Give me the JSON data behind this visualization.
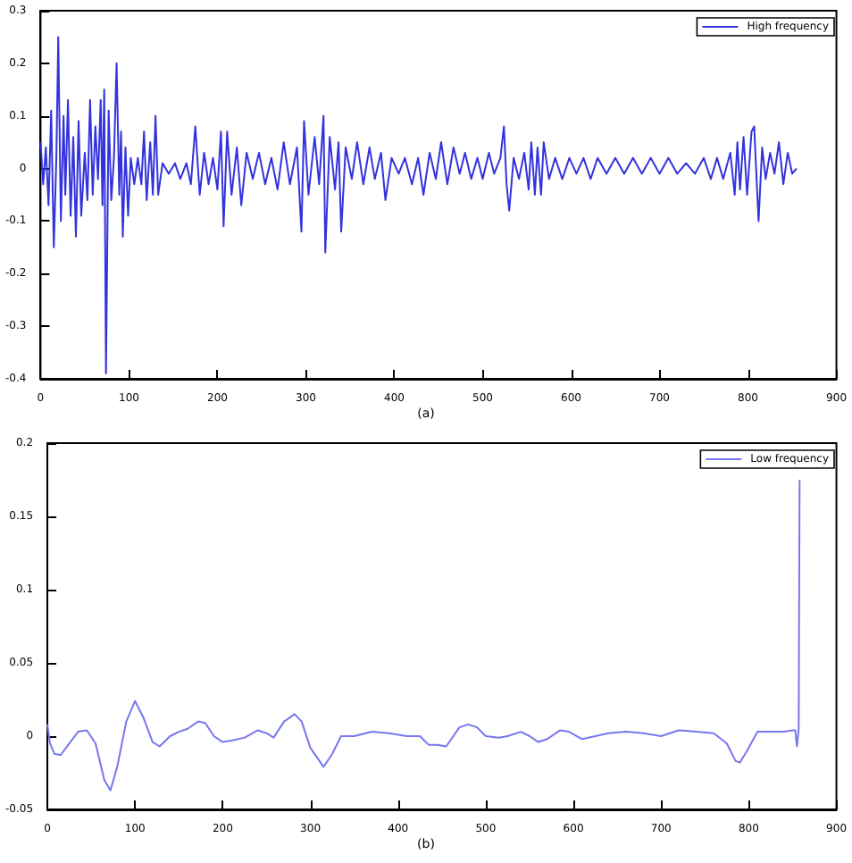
{
  "chart_data": [
    {
      "type": "line",
      "annotations": [
        "(a)"
      ],
      "legend": "top right",
      "grid": false,
      "marker": "none",
      "line_style": "solid",
      "xlim": [
        0,
        900
      ],
      "xticks": [
        0,
        100,
        200,
        300,
        400,
        500,
        600,
        700,
        800,
        900
      ],
      "ylim": [
        -0.4,
        0.3
      ],
      "yticks": [
        -0.4,
        -0.3,
        -0.2,
        -0.1,
        0,
        0.1,
        0.2,
        0.3
      ],
      "x": [
        0,
        3,
        6,
        9,
        12,
        15,
        18,
        20,
        23,
        26,
        28,
        31,
        34,
        37,
        40,
        43,
        46,
        50,
        53,
        56,
        59,
        62,
        65,
        68,
        70,
        72,
        74,
        77,
        80,
        83,
        86,
        89,
        91,
        93,
        96,
        99,
        102,
        106,
        110,
        114,
        117,
        120,
        124,
        127,
        130,
        133,
        138,
        145,
        152,
        158,
        165,
        170,
        175,
        180,
        185,
        190,
        195,
        200,
        204,
        207,
        211,
        216,
        222,
        227,
        233,
        240,
        247,
        254,
        261,
        268,
        275,
        282,
        290,
        295,
        298,
        303,
        310,
        315,
        320,
        322,
        327,
        333,
        337,
        340,
        345,
        352,
        358,
        365,
        372,
        378,
        385,
        390,
        397,
        405,
        412,
        420,
        427,
        433,
        440,
        447,
        453,
        460,
        467,
        474,
        480,
        487,
        494,
        500,
        507,
        513,
        520,
        524,
        527,
        530,
        535,
        541,
        547,
        552,
        555,
        559,
        562,
        566,
        569,
        575,
        582,
        590,
        598,
        606,
        614,
        622,
        630,
        640,
        650,
        660,
        670,
        680,
        690,
        700,
        710,
        720,
        730,
        740,
        750,
        758,
        765,
        772,
        780,
        785,
        788,
        791,
        795,
        799,
        804,
        807,
        810,
        812,
        816,
        820,
        825,
        830,
        835,
        840,
        845,
        850,
        855
      ],
      "series": [
        {
          "name": "High frequency",
          "color": "#3333dd",
          "values": [
            0.05,
            -0.03,
            0.04,
            -0.07,
            0.11,
            -0.15,
            0.03,
            0.25,
            -0.1,
            0.1,
            -0.05,
            0.13,
            -0.09,
            0.06,
            -0.13,
            0.09,
            -0.09,
            0.03,
            -0.06,
            0.13,
            -0.05,
            0.08,
            -0.02,
            0.13,
            -0.07,
            0.15,
            -0.39,
            0.11,
            -0.06,
            0.02,
            0.2,
            -0.05,
            0.07,
            -0.13,
            0.04,
            -0.09,
            0.02,
            -0.03,
            0.02,
            -0.03,
            0.07,
            -0.06,
            0.05,
            -0.05,
            0.1,
            -0.05,
            0.01,
            -0.01,
            0.01,
            -0.02,
            0.01,
            -0.03,
            0.08,
            -0.05,
            0.03,
            -0.03,
            0.02,
            -0.04,
            0.07,
            -0.11,
            0.07,
            -0.05,
            0.04,
            -0.07,
            0.03,
            -0.02,
            0.03,
            -0.03,
            0.02,
            -0.04,
            0.05,
            -0.03,
            0.04,
            -0.12,
            0.09,
            -0.05,
            0.06,
            -0.03,
            0.1,
            -0.16,
            0.06,
            -0.04,
            0.05,
            -0.12,
            0.04,
            -0.02,
            0.05,
            -0.03,
            0.04,
            -0.02,
            0.03,
            -0.06,
            0.02,
            -0.01,
            0.02,
            -0.03,
            0.02,
            -0.05,
            0.03,
            -0.02,
            0.05,
            -0.03,
            0.04,
            -0.01,
            0.03,
            -0.02,
            0.02,
            -0.02,
            0.03,
            -0.01,
            0.02,
            0.08,
            -0.03,
            -0.08,
            0.02,
            -0.02,
            0.03,
            -0.04,
            0.05,
            -0.05,
            0.04,
            -0.05,
            0.05,
            -0.02,
            0.02,
            -0.02,
            0.02,
            -0.01,
            0.02,
            -0.02,
            0.02,
            -0.01,
            0.02,
            -0.01,
            0.02,
            -0.01,
            0.02,
            -0.01,
            0.02,
            -0.01,
            0.01,
            -0.01,
            0.02,
            -0.02,
            0.02,
            -0.02,
            0.03,
            -0.05,
            0.05,
            -0.04,
            0.06,
            -0.05,
            0.07,
            0.08,
            -0.03,
            -0.1,
            0.04,
            -0.02,
            0.03,
            -0.01,
            0.05,
            -0.03,
            0.03,
            -0.01,
            0
          ]
        }
      ]
    },
    {
      "type": "line",
      "annotations": [
        "(b)"
      ],
      "legend": "top right",
      "grid": false,
      "marker": "none",
      "line_style": "solid",
      "xlim": [
        0,
        900
      ],
      "xticks": [
        0,
        100,
        200,
        300,
        400,
        500,
        600,
        700,
        800,
        900
      ],
      "ylim": [
        -0.05,
        0.2
      ],
      "yticks": [
        -0.05,
        0,
        0.05,
        0.1,
        0.15,
        0.2
      ],
      "x": [
        0,
        3,
        8,
        15,
        25,
        35,
        45,
        55,
        65,
        72,
        80,
        90,
        100,
        110,
        120,
        128,
        140,
        150,
        160,
        172,
        180,
        190,
        200,
        210,
        225,
        240,
        250,
        258,
        270,
        282,
        290,
        300,
        315,
        325,
        335,
        350,
        370,
        390,
        410,
        425,
        435,
        445,
        455,
        470,
        480,
        490,
        500,
        515,
        525,
        540,
        550,
        560,
        570,
        585,
        595,
        610,
        625,
        640,
        660,
        680,
        700,
        720,
        740,
        760,
        775,
        785,
        790,
        798,
        810,
        825,
        840,
        850,
        853,
        855,
        857,
        858
      ],
      "series": [
        {
          "name": "Low frequency",
          "color": "#7777ee",
          "values": [
            0.008,
            -0.005,
            -0.012,
            -0.013,
            -0.005,
            0.003,
            0.004,
            -0.005,
            -0.03,
            -0.037,
            -0.02,
            0.01,
            0.024,
            0.012,
            -0.004,
            -0.007,
            0,
            0.003,
            0.005,
            0.01,
            0.009,
            0,
            -0.004,
            -0.003,
            -0.001,
            0.004,
            0.002,
            -0.001,
            0.01,
            0.015,
            0.01,
            -0.008,
            -0.021,
            -0.012,
            0,
            0,
            0.003,
            0.002,
            0,
            0,
            -0.006,
            -0.006,
            -0.007,
            0.006,
            0.008,
            0.006,
            0,
            -0.001,
            0,
            0.003,
            0,
            -0.004,
            -0.002,
            0.004,
            0.003,
            -0.002,
            0,
            0.002,
            0.003,
            0.002,
            0,
            0.004,
            0.003,
            0.002,
            -0.005,
            -0.017,
            -0.018,
            -0.01,
            0.003,
            0.003,
            0.003,
            0.004,
            0.004,
            -0.007,
            0.005,
            0.175
          ]
        }
      ]
    }
  ]
}
